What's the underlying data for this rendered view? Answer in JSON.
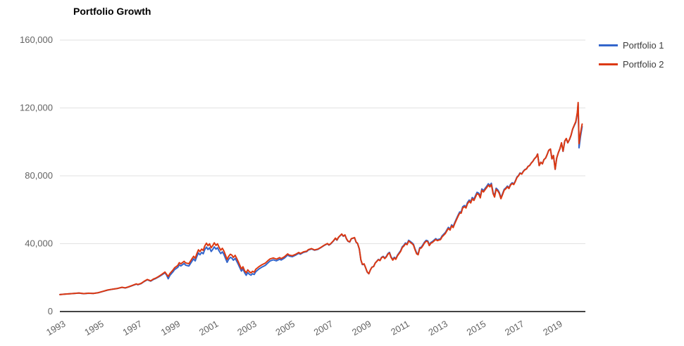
{
  "title": "Portfolio Growth",
  "colors": {
    "axis_line": "#444444",
    "gridline": "#e2e2e2",
    "tick_label": "#636363",
    "series1": "#3366cc",
    "series2": "#dc3912"
  },
  "chart_data": {
    "type": "line",
    "title": "Portfolio Growth",
    "xlabel": "",
    "ylabel": "",
    "grid": true,
    "legend_position": "right",
    "xlim": [
      1993,
      2020.5
    ],
    "ylim": [
      0,
      160000
    ],
    "x_ticks": [
      1993,
      1995,
      1997,
      1999,
      2001,
      2003,
      2005,
      2007,
      2009,
      2011,
      2013,
      2015,
      2017,
      2019
    ],
    "x_tick_labels": [
      "1993",
      "1995",
      "1997",
      "1999",
      "2001",
      "2003",
      "2005",
      "2007",
      "2009",
      "2011",
      "2013",
      "2015",
      "2017",
      "2019"
    ],
    "y_ticks": [
      0,
      40000,
      80000,
      120000,
      160000
    ],
    "y_tick_labels": [
      "0",
      "40,000",
      "80,000",
      "120,000",
      "160,000"
    ],
    "x": [
      1993.0,
      1993.25,
      1993.5,
      1993.75,
      1994.0,
      1994.25,
      1994.5,
      1994.75,
      1995.0,
      1995.25,
      1995.5,
      1995.75,
      1996.0,
      1996.25,
      1996.42,
      1996.58,
      1996.75,
      1997.0,
      1997.08,
      1997.25,
      1997.42,
      1997.58,
      1997.75,
      1997.92,
      1998.0,
      1998.17,
      1998.33,
      1998.5,
      1998.58,
      1998.67,
      1998.75,
      1998.92,
      1999.0,
      1999.17,
      1999.25,
      1999.33,
      1999.5,
      1999.58,
      1999.75,
      1999.92,
      2000.0,
      2000.08,
      2000.17,
      2000.25,
      2000.33,
      2000.42,
      2000.5,
      2000.58,
      2000.67,
      2000.75,
      2000.83,
      2000.92,
      2001.0,
      2001.08,
      2001.17,
      2001.25,
      2001.33,
      2001.42,
      2001.5,
      2001.58,
      2001.67,
      2001.75,
      2001.83,
      2001.92,
      2002.0,
      2002.08,
      2002.17,
      2002.25,
      2002.33,
      2002.42,
      2002.5,
      2002.58,
      2002.67,
      2002.75,
      2002.83,
      2002.92,
      2003.0,
      2003.08,
      2003.17,
      2003.25,
      2003.42,
      2003.58,
      2003.75,
      2003.92,
      2004.0,
      2004.17,
      2004.33,
      2004.5,
      2004.58,
      2004.75,
      2004.92,
      2005.0,
      2005.17,
      2005.33,
      2005.5,
      2005.58,
      2005.75,
      2005.92,
      2006.0,
      2006.17,
      2006.33,
      2006.5,
      2006.67,
      2006.83,
      2007.0,
      2007.08,
      2007.17,
      2007.33,
      2007.42,
      2007.5,
      2007.58,
      2007.75,
      2007.83,
      2007.92,
      2008.0,
      2008.08,
      2008.17,
      2008.25,
      2008.42,
      2008.5,
      2008.58,
      2008.67,
      2008.75,
      2008.83,
      2008.92,
      2009.0,
      2009.08,
      2009.17,
      2009.25,
      2009.33,
      2009.42,
      2009.5,
      2009.58,
      2009.67,
      2009.75,
      2009.83,
      2009.92,
      2010.0,
      2010.08,
      2010.17,
      2010.25,
      2010.33,
      2010.42,
      2010.5,
      2010.58,
      2010.67,
      2010.75,
      2010.83,
      2010.92,
      2011.0,
      2011.08,
      2011.17,
      2011.25,
      2011.33,
      2011.42,
      2011.5,
      2011.58,
      2011.67,
      2011.75,
      2011.83,
      2011.92,
      2012.0,
      2012.08,
      2012.17,
      2012.25,
      2012.33,
      2012.42,
      2012.5,
      2012.58,
      2012.67,
      2012.75,
      2012.83,
      2012.92,
      2013.0,
      2013.17,
      2013.25,
      2013.33,
      2013.42,
      2013.5,
      2013.58,
      2013.67,
      2013.75,
      2013.83,
      2013.92,
      2014.0,
      2014.08,
      2014.17,
      2014.25,
      2014.33,
      2014.42,
      2014.5,
      2014.58,
      2014.67,
      2014.75,
      2014.83,
      2014.92,
      2015.0,
      2015.08,
      2015.17,
      2015.25,
      2015.33,
      2015.42,
      2015.5,
      2015.58,
      2015.67,
      2015.75,
      2015.83,
      2015.92,
      2016.0,
      2016.08,
      2016.17,
      2016.25,
      2016.33,
      2016.42,
      2016.5,
      2016.58,
      2016.67,
      2016.75,
      2016.83,
      2016.92,
      2017.0,
      2017.08,
      2017.17,
      2017.25,
      2017.33,
      2017.42,
      2017.5,
      2017.58,
      2017.67,
      2017.75,
      2017.83,
      2017.92,
      2018.0,
      2018.08,
      2018.17,
      2018.25,
      2018.33,
      2018.42,
      2018.5,
      2018.58,
      2018.67,
      2018.75,
      2018.83,
      2018.92,
      2019.0,
      2019.08,
      2019.17,
      2019.25,
      2019.33,
      2019.42,
      2019.5,
      2019.58,
      2019.67,
      2019.75,
      2019.83,
      2019.92,
      2020.0,
      2020.08,
      2020.12,
      2020.17,
      2020.25,
      2020.33
    ],
    "series": [
      {
        "name": "Portfolio 1",
        "color": "#3366cc",
        "values": [
          10000,
          10220,
          10430,
          10670,
          10920,
          10530,
          10780,
          10690,
          11080,
          11860,
          12650,
          13140,
          13540,
          14220,
          13870,
          14420,
          15110,
          16180,
          15790,
          16470,
          17760,
          18720,
          17920,
          19080,
          19350,
          20400,
          21550,
          22850,
          21500,
          19300,
          21200,
          23400,
          24700,
          26050,
          27550,
          26850,
          28300,
          27350,
          26800,
          29750,
          31050,
          29850,
          32500,
          34550,
          33450,
          34850,
          34050,
          36450,
          38000,
          36550,
          37600,
          35400,
          36650,
          38150,
          36750,
          37600,
          35750,
          34150,
          35200,
          33700,
          31250,
          29000,
          30700,
          31950,
          31500,
          30200,
          31350,
          29750,
          27950,
          25800,
          23850,
          25100,
          22850,
          21350,
          23000,
          21950,
          21450,
          22300,
          21850,
          23500,
          25100,
          26250,
          27200,
          29000,
          29800,
          30500,
          29900,
          30850,
          30350,
          31500,
          33300,
          32700,
          32350,
          33200,
          34350,
          33800,
          34850,
          35300,
          36250,
          36900,
          36150,
          36650,
          37750,
          38950,
          39950,
          39150,
          39850,
          41750,
          43150,
          42050,
          43650,
          45550,
          44350,
          45050,
          42750,
          41350,
          40950,
          42850,
          43450,
          40850,
          40050,
          36750,
          30350,
          27650,
          27950,
          25800,
          23300,
          22250,
          24600,
          26150,
          26600,
          28600,
          29650,
          30750,
          30150,
          31900,
          32550,
          31500,
          32450,
          34250,
          34900,
          32300,
          30700,
          32000,
          31200,
          33300,
          34550,
          35850,
          38200,
          39100,
          40400,
          39900,
          42000,
          41400,
          40600,
          39700,
          37100,
          34500,
          34000,
          37600,
          38000,
          39400,
          40900,
          42000,
          41700,
          39400,
          40800,
          41300,
          42100,
          43000,
          42300,
          42600,
          42900,
          44600,
          46600,
          48100,
          49600,
          48600,
          51100,
          50100,
          52600,
          54650,
          56650,
          58700,
          58700,
          61700,
          62500,
          61700,
          64250,
          65750,
          64750,
          67250,
          66250,
          68300,
          70300,
          69800,
          67800,
          72300,
          71300,
          72600,
          73800,
          75300,
          74300,
          75600,
          70200,
          68200,
          72700,
          71650,
          70100,
          67050,
          69550,
          72000,
          72800,
          74000,
          72950,
          74950,
          75950,
          75200,
          76850,
          79300,
          80250,
          81700,
          81200,
          82650,
          83650,
          84150,
          85600,
          86100,
          87600,
          88600,
          90050,
          91050,
          92850,
          86050,
          88050,
          87050,
          89500,
          90500,
          92500,
          95000,
          95800,
          90000,
          92000,
          83800,
          90500,
          93500,
          96000,
          99400,
          94400,
          100400,
          101900,
          99400,
          101400,
          103900,
          107300,
          109700,
          111500,
          116800,
          122400,
          96500,
          103500,
          109000
        ]
      },
      {
        "name": "Portfolio 2",
        "color": "#dc3912",
        "values": [
          10000,
          10250,
          10450,
          10700,
          10950,
          10550,
          10800,
          10700,
          11100,
          11900,
          12700,
          13200,
          13600,
          14300,
          13950,
          14500,
          15200,
          16300,
          15900,
          16600,
          17900,
          18900,
          18100,
          19300,
          19600,
          20700,
          21900,
          23300,
          22000,
          20700,
          22300,
          24500,
          25800,
          27200,
          28800,
          28100,
          29600,
          28700,
          28200,
          31200,
          32600,
          31400,
          34200,
          36400,
          35300,
          36800,
          36000,
          38600,
          40300,
          38800,
          39900,
          37600,
          38900,
          40500,
          39000,
          39900,
          37900,
          36200,
          37300,
          35700,
          33100,
          30700,
          32500,
          33800,
          33300,
          31900,
          33100,
          31400,
          29500,
          27200,
          25100,
          26400,
          24000,
          22900,
          24600,
          23400,
          22800,
          23700,
          23200,
          24900,
          26500,
          27600,
          28500,
          30300,
          31000,
          31600,
          30900,
          31800,
          31200,
          32300,
          34000,
          33300,
          32900,
          33700,
          34800,
          34200,
          35200,
          35600,
          36500,
          37100,
          36300,
          36800,
          37900,
          39100,
          40100,
          39300,
          40000,
          41900,
          43300,
          42200,
          43800,
          45700,
          44500,
          45200,
          42900,
          41500,
          41100,
          43000,
          43600,
          41000,
          40200,
          36900,
          30500,
          27800,
          28100,
          25900,
          23400,
          22300,
          24600,
          26100,
          26500,
          28500,
          29500,
          30600,
          30000,
          31700,
          32300,
          31200,
          32100,
          33900,
          34500,
          31900,
          30300,
          31600,
          30800,
          32900,
          34100,
          35400,
          37700,
          38600,
          39900,
          39400,
          41500,
          40900,
          40100,
          39200,
          36600,
          34000,
          33500,
          37100,
          37500,
          38900,
          40400,
          41500,
          41200,
          38900,
          40300,
          40800,
          41600,
          42500,
          41800,
          42100,
          42400,
          44000,
          46000,
          47500,
          49000,
          48000,
          50500,
          49500,
          52000,
          54000,
          56000,
          58000,
          58000,
          61000,
          61800,
          61000,
          63500,
          65000,
          64000,
          66500,
          65500,
          67500,
          69500,
          69000,
          67000,
          71500,
          70500,
          71800,
          73000,
          74500,
          73500,
          74800,
          69500,
          67500,
          72000,
          71000,
          69500,
          66500,
          69000,
          71500,
          72300,
          73500,
          72500,
          74500,
          75500,
          74800,
          76500,
          79000,
          80000,
          81500,
          81000,
          82500,
          83500,
          84000,
          85500,
          86000,
          87500,
          88500,
          90000,
          91000,
          92800,
          86000,
          88000,
          87000,
          89500,
          90500,
          92500,
          95000,
          95800,
          90000,
          92000,
          83800,
          90500,
          93500,
          96000,
          99500,
          94500,
          100500,
          102000,
          99500,
          101500,
          104000,
          107500,
          110000,
          112000,
          117500,
          123200,
          99000,
          105500,
          110500
        ]
      }
    ]
  }
}
